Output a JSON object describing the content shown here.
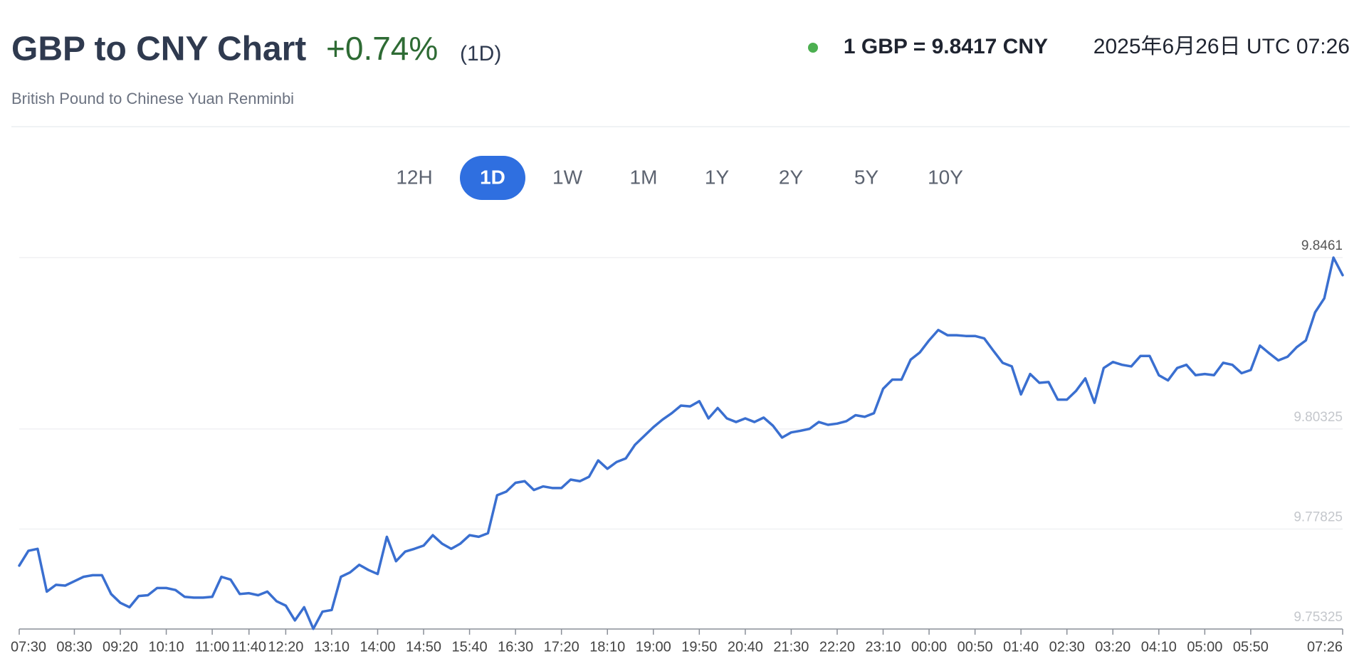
{
  "header": {
    "title": "GBP to CNY Chart",
    "change": "+0.74%",
    "period": "(1D)",
    "subtitle": "British Pound to Chinese Yuan Renminbi",
    "rate": "1 GBP = 9.8417 CNY",
    "timestamp": "2025年6月26日 UTC 07:26"
  },
  "buttons": {
    "items": [
      "12H",
      "1D",
      "1W",
      "1M",
      "1Y",
      "2Y",
      "5Y",
      "10Y"
    ],
    "active": 1
  },
  "chart_data": {
    "type": "line",
    "color": "#3a6fd0",
    "grid": true,
    "ylim": [
      9.75325,
      9.8461
    ],
    "yticks": [
      9.75325,
      9.77825,
      9.80325,
      9.8461
    ],
    "categories": [
      "07:30",
      null,
      null,
      null,
      null,
      null,
      "08:30",
      null,
      null,
      null,
      null,
      "09:20",
      null,
      null,
      null,
      null,
      "10:10",
      null,
      null,
      null,
      null,
      "11:00",
      null,
      null,
      null,
      "11:40",
      null,
      null,
      null,
      "12:20",
      null,
      null,
      null,
      null,
      "13:10",
      null,
      null,
      null,
      null,
      "14:00",
      null,
      null,
      null,
      null,
      "14:50",
      null,
      null,
      null,
      null,
      "15:40",
      null,
      null,
      null,
      null,
      "16:30",
      null,
      null,
      null,
      null,
      "17:20",
      null,
      null,
      null,
      null,
      "18:10",
      null,
      null,
      null,
      null,
      "19:00",
      null,
      null,
      null,
      null,
      "19:50",
      null,
      null,
      null,
      null,
      "20:40",
      null,
      null,
      null,
      null,
      "21:30",
      null,
      null,
      null,
      null,
      "22:20",
      null,
      null,
      null,
      null,
      "23:10",
      null,
      null,
      null,
      null,
      "00:00",
      null,
      null,
      null,
      null,
      "00:50",
      null,
      null,
      null,
      null,
      "01:40",
      null,
      null,
      null,
      null,
      "02:30",
      null,
      null,
      null,
      null,
      "03:20",
      null,
      null,
      null,
      null,
      "04:10",
      null,
      null,
      null,
      null,
      "05:00",
      null,
      null,
      null,
      null,
      "05:50",
      null,
      null,
      null,
      null,
      null,
      null,
      null,
      null,
      null,
      "07:26"
    ],
    "values": [
      9.7691,
      9.7728,
      9.7733,
      9.7626,
      9.7643,
      9.7641,
      9.7652,
      9.7663,
      9.7667,
      9.7667,
      9.762,
      9.7598,
      9.7587,
      9.7615,
      9.7617,
      9.7635,
      9.7635,
      9.763,
      9.7613,
      9.7611,
      9.7611,
      9.7613,
      9.7663,
      9.7656,
      9.762,
      9.7622,
      9.7617,
      9.7626,
      9.7602,
      9.7591,
      9.7554,
      9.7587,
      9.7533,
      9.7576,
      9.758,
      9.7663,
      9.7674,
      9.7693,
      9.768,
      9.767,
      9.7763,
      9.7702,
      9.7726,
      9.7733,
      9.7741,
      9.7767,
      9.7746,
      9.7733,
      9.7746,
      9.7767,
      9.7763,
      9.7772,
      9.7867,
      9.7876,
      9.7898,
      9.7902,
      9.788,
      9.7889,
      9.7885,
      9.7885,
      9.7906,
      9.7902,
      9.7913,
      9.7954,
      9.7933,
      9.795,
      9.7959,
      9.7993,
      9.8015,
      9.8037,
      9.8056,
      9.8072,
      9.8091,
      9.8089,
      9.8102,
      9.8059,
      9.8085,
      9.8059,
      9.805,
      9.8059,
      9.805,
      9.8061,
      9.8041,
      9.8011,
      9.8024,
      9.8028,
      9.8033,
      9.805,
      9.8043,
      9.8046,
      9.8052,
      9.8067,
      9.8063,
      9.8072,
      9.8133,
      9.8156,
      9.8156,
      9.8206,
      9.8224,
      9.8254,
      9.828,
      9.8267,
      9.8267,
      9.8265,
      9.8265,
      9.8259,
      9.8228,
      9.8198,
      9.8189,
      9.8119,
      9.817,
      9.8148,
      9.815,
      9.8106,
      9.8106,
      9.8128,
      9.8159,
      9.8098,
      9.8185,
      9.82,
      9.8193,
      9.8189,
      9.8215,
      9.8215,
      9.8167,
      9.8154,
      9.8185,
      9.8193,
      9.8167,
      9.817,
      9.8167,
      9.8198,
      9.8193,
      9.8172,
      9.818,
      9.8241,
      9.8222,
      9.8204,
      9.8213,
      9.8237,
      9.8254,
      9.8324,
      9.8359,
      9.8461,
      9.8417
    ]
  }
}
